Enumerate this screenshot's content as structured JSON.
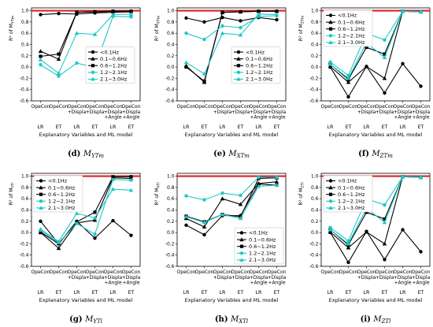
{
  "chart_data": [
    {
      "type": "line",
      "panel_label": "(d)",
      "caption_main": "M",
      "caption_sub": "YTm",
      "ylabel_main": "R² of M",
      "ylabel_sub": "YTm",
      "xlabel": "Explanatory Variables and ML model",
      "categories": [
        "OpeCon",
        "OpeCon",
        "OpeCon\n+Displa",
        "OpeCon\n+Displa",
        "OpeCon\n+Displa\n+Angle",
        "OpeCon\n+Displa\n+Angle"
      ],
      "models": [
        "LR",
        "ET",
        "LR",
        "ET",
        "LR",
        "ET"
      ],
      "ylim": [
        -0.6,
        1.05
      ],
      "yticks": [
        -0.6,
        -0.4,
        -0.2,
        0.0,
        0.2,
        0.4,
        0.6,
        0.8,
        1.0
      ],
      "legend_position": "center-right",
      "series": [
        {
          "name": "<0.1Hz",
          "marker": "circle",
          "color": "#000000",
          "values": [
            0.93,
            0.95,
            0.94,
            0.96,
            0.97,
            0.98
          ]
        },
        {
          "name": "0.1~0.6Hz",
          "marker": "triangle",
          "color": "#000000",
          "values": [
            0.28,
            0.14,
            0.97,
            0.98,
            0.99,
            0.99
          ]
        },
        {
          "name": "0.6~1.2Hz",
          "marker": "square",
          "color": "#000000",
          "values": [
            0.19,
            0.23,
            0.97,
            0.98,
            0.99,
            0.99
          ]
        },
        {
          "name": "1.2~2.1Hz",
          "marker": "circle",
          "color": "#1ec8c8",
          "values": [
            0.04,
            -0.16,
            0.07,
            -0.01,
            0.9,
            0.89
          ]
        },
        {
          "name": "2.1~3.0Hz",
          "marker": "triangle",
          "color": "#1ec8c8",
          "values": [
            0.13,
            -0.11,
            0.6,
            0.58,
            0.93,
            0.94
          ]
        }
      ]
    },
    {
      "type": "line",
      "panel_label": "(e)",
      "caption_main": "M",
      "caption_sub": "XTm",
      "ylabel_main": "R² of M",
      "ylabel_sub": "XTm",
      "xlabel": "Explanatory Variables and ML model",
      "categories": [
        "OpeCon",
        "OpeCon",
        "OpeCon\n+Displa",
        "OpeCon\n+Displa",
        "OpeCon\n+Displa\n+Angle",
        "OpeCon\n+Displa\n+Angle"
      ],
      "models": [
        "LR",
        "ET",
        "LR",
        "ET",
        "LR",
        "ET"
      ],
      "ylim": [
        -0.6,
        1.05
      ],
      "yticks": [
        -0.6,
        -0.4,
        -0.2,
        0.0,
        0.2,
        0.4,
        0.6,
        0.8,
        1.0
      ],
      "legend_position": "center-right",
      "series": [
        {
          "name": "<0.1Hz",
          "marker": "circle",
          "color": "#000000",
          "values": [
            0.87,
            0.8,
            0.88,
            0.82,
            0.88,
            0.84
          ]
        },
        {
          "name": "0.1~0.6Hz",
          "marker": "triangle",
          "color": "#000000",
          "values": [
            0.02,
            -0.27,
            0.97,
            0.98,
            0.99,
            0.99
          ]
        },
        {
          "name": "0.6~1.2Hz",
          "marker": "square",
          "color": "#000000",
          "values": [
            0.0,
            -0.25,
            0.97,
            0.98,
            0.99,
            0.99
          ]
        },
        {
          "name": "1.2~2.1Hz",
          "marker": "circle",
          "color": "#1ec8c8",
          "values": [
            0.6,
            0.49,
            0.73,
            0.7,
            0.9,
            0.91
          ]
        },
        {
          "name": "2.1~3.0Hz",
          "marker": "triangle",
          "color": "#1ec8c8",
          "values": [
            0.08,
            -0.12,
            0.6,
            0.57,
            0.94,
            0.93
          ]
        }
      ]
    },
    {
      "type": "line",
      "panel_label": "(f)",
      "caption_main": "M",
      "caption_sub": "ZTm",
      "ylabel_main": "R² of M",
      "ylabel_sub": "ZTm",
      "xlabel": "Explanatory Variables and ML model",
      "categories": [
        "OpeCon",
        "OpeCon",
        "OpeCon\n+Displa",
        "OpeCon\n+Displa",
        "OpeCon\n+Displa\n+Angle",
        "OpeCon\n+Displa\n+Angle"
      ],
      "models": [
        "LR",
        "ET",
        "LR",
        "ET",
        "LR",
        "ET"
      ],
      "ylim": [
        -0.6,
        1.05
      ],
      "yticks": [
        -0.6,
        -0.4,
        -0.2,
        0.0,
        0.2,
        0.4,
        0.6,
        0.8,
        1.0
      ],
      "legend_position": "upper-left",
      "series": [
        {
          "name": "<0.1Hz",
          "marker": "circle",
          "color": "#000000",
          "values": [
            0.0,
            -0.53,
            0.01,
            -0.46,
            0.06,
            -0.34
          ]
        },
        {
          "name": "0.1~0.6Hz",
          "marker": "triangle",
          "color": "#000000",
          "values": [
            0.01,
            -0.27,
            0.01,
            -0.2,
            0.99,
            0.98
          ]
        },
        {
          "name": "0.6~1.2Hz",
          "marker": "square",
          "color": "#000000",
          "values": [
            0.05,
            -0.22,
            0.35,
            0.23,
            0.99,
            0.98
          ]
        },
        {
          "name": "1.2~2.1Hz",
          "marker": "circle",
          "color": "#1ec8c8",
          "values": [
            0.09,
            -0.15,
            0.6,
            0.48,
            0.99,
            0.98
          ]
        },
        {
          "name": "2.1~3.0Hz",
          "marker": "triangle",
          "color": "#1ec8c8",
          "values": [
            0.05,
            -0.2,
            0.43,
            0.17,
            0.99,
            0.98
          ]
        }
      ]
    },
    {
      "type": "line",
      "panel_label": "(g)",
      "caption_main": "M",
      "caption_sub": "YTl",
      "ylabel_main": "R² of M",
      "ylabel_sub": "YTl",
      "xlabel": "Explanatory Variables and ML model",
      "categories": [
        "OpeCon",
        "OpeCon",
        "OpeCon\n+Displa",
        "OpeCon\n+Displa",
        "OpeCon\n+Displa\n+Angle",
        "OpeCon\n+Displa\n+Angle"
      ],
      "models": [
        "LR",
        "ET",
        "LR",
        "ET",
        "LR",
        "ET"
      ],
      "ylim": [
        -0.6,
        1.05
      ],
      "yticks": [
        -0.6,
        -0.4,
        -0.2,
        0.0,
        0.2,
        0.4,
        0.6,
        0.8,
        1.0
      ],
      "legend_position": "upper-left",
      "series": [
        {
          "name": "<0.1Hz",
          "marker": "circle",
          "color": "#000000",
          "values": [
            0.2,
            -0.2,
            0.2,
            -0.1,
            0.21,
            -0.05
          ]
        },
        {
          "name": "0.1~0.6Hz",
          "marker": "triangle",
          "color": "#000000",
          "values": [
            0.0,
            -0.28,
            0.17,
            0.22,
            0.97,
            0.96
          ]
        },
        {
          "name": "0.6~1.2Hz",
          "marker": "square",
          "color": "#000000",
          "values": [
            0.01,
            -0.2,
            0.19,
            0.36,
            0.99,
            0.99
          ]
        },
        {
          "name": "1.2~2.1Hz",
          "marker": "circle",
          "color": "#1ec8c8",
          "values": [
            0.04,
            -0.18,
            0.16,
            -0.03,
            0.94,
            0.93
          ]
        },
        {
          "name": "2.1~3.0Hz",
          "marker": "triangle",
          "color": "#1ec8c8",
          "values": [
            0.06,
            -0.16,
            0.34,
            0.26,
            0.77,
            0.75
          ]
        }
      ]
    },
    {
      "type": "line",
      "panel_label": "(h)",
      "caption_main": "M",
      "caption_sub": "XTl",
      "ylabel_main": "R² of M",
      "ylabel_sub": "XTl",
      "xlabel": "Explanatory Variables and ML model",
      "categories": [
        "OpeCon",
        "OpeCon",
        "OpeCon\n+Displa",
        "OpeCon\n+Displa",
        "OpeCon\n+Displa\n+Angle",
        "OpeCon\n+Displa\n+Angle"
      ],
      "models": [
        "LR",
        "ET",
        "LR",
        "ET",
        "LR",
        "ET"
      ],
      "ylim": [
        -0.6,
        1.05
      ],
      "yticks": [
        -0.6,
        -0.4,
        -0.2,
        0.0,
        0.2,
        0.4,
        0.6,
        0.8,
        1.0
      ],
      "legend_position": "lower-right",
      "series": [
        {
          "name": "<0.1Hz",
          "marker": "circle",
          "color": "#000000",
          "values": [
            0.13,
            -0.04,
            0.3,
            0.3,
            0.86,
            0.84
          ]
        },
        {
          "name": "0.1~0.6Hz",
          "marker": "triangle",
          "color": "#000000",
          "values": [
            0.25,
            0.1,
            0.6,
            0.5,
            0.87,
            0.9
          ]
        },
        {
          "name": "0.6~1.2Hz",
          "marker": "square",
          "color": "#000000",
          "values": [
            0.29,
            0.19,
            0.32,
            0.28,
            0.96,
            0.97
          ]
        },
        {
          "name": "1.2~2.1Hz",
          "marker": "circle",
          "color": "#1ec8c8",
          "values": [
            0.65,
            0.58,
            0.7,
            0.66,
            0.98,
            0.98
          ]
        },
        {
          "name": "2.1~3.0Hz",
          "marker": "triangle",
          "color": "#1ec8c8",
          "values": [
            0.28,
            0.18,
            0.32,
            0.25,
            0.82,
            0.84
          ]
        }
      ]
    },
    {
      "type": "line",
      "panel_label": "(i)",
      "caption_main": "M",
      "caption_sub": "ZTl",
      "ylabel_main": "R² of M",
      "ylabel_sub": "ZTl",
      "xlabel": "Explanatory Variables and ML model",
      "categories": [
        "OpeCon",
        "OpeCon",
        "OpeCon\n+Displa",
        "OpeCon\n+Displa",
        "OpeCon\n+Displa\n+Angle",
        "OpeCon\n+Displa\n+Angle"
      ],
      "models": [
        "LR",
        "ET",
        "LR",
        "ET",
        "LR",
        "ET"
      ],
      "ylim": [
        -0.6,
        1.05
      ],
      "yticks": [
        -0.6,
        -0.4,
        -0.2,
        0.0,
        0.2,
        0.4,
        0.6,
        0.8,
        1.0
      ],
      "legend_position": "upper-left",
      "series": [
        {
          "name": "<0.1Hz",
          "marker": "circle",
          "color": "#000000",
          "values": [
            0.0,
            -0.53,
            0.02,
            -0.48,
            0.05,
            -0.34
          ]
        },
        {
          "name": "0.1~0.6Hz",
          "marker": "triangle",
          "color": "#000000",
          "values": [
            0.01,
            -0.27,
            0.01,
            -0.2,
            0.99,
            0.98
          ]
        },
        {
          "name": "0.6~1.2Hz",
          "marker": "square",
          "color": "#000000",
          "values": [
            0.05,
            -0.22,
            0.36,
            0.24,
            0.99,
            0.98
          ]
        },
        {
          "name": "1.2~2.1Hz",
          "marker": "circle",
          "color": "#1ec8c8",
          "values": [
            0.09,
            -0.15,
            0.6,
            0.49,
            0.99,
            0.98
          ]
        },
        {
          "name": "2.1~3.0Hz",
          "marker": "triangle",
          "color": "#1ec8c8",
          "values": [
            0.05,
            -0.2,
            0.43,
            0.18,
            0.99,
            0.98
          ]
        }
      ]
    }
  ],
  "style": {
    "reference_line_value": 1.0,
    "reference_line_color": "#d9232a",
    "black": "#000000",
    "cyan": "#1ec8c8"
  }
}
